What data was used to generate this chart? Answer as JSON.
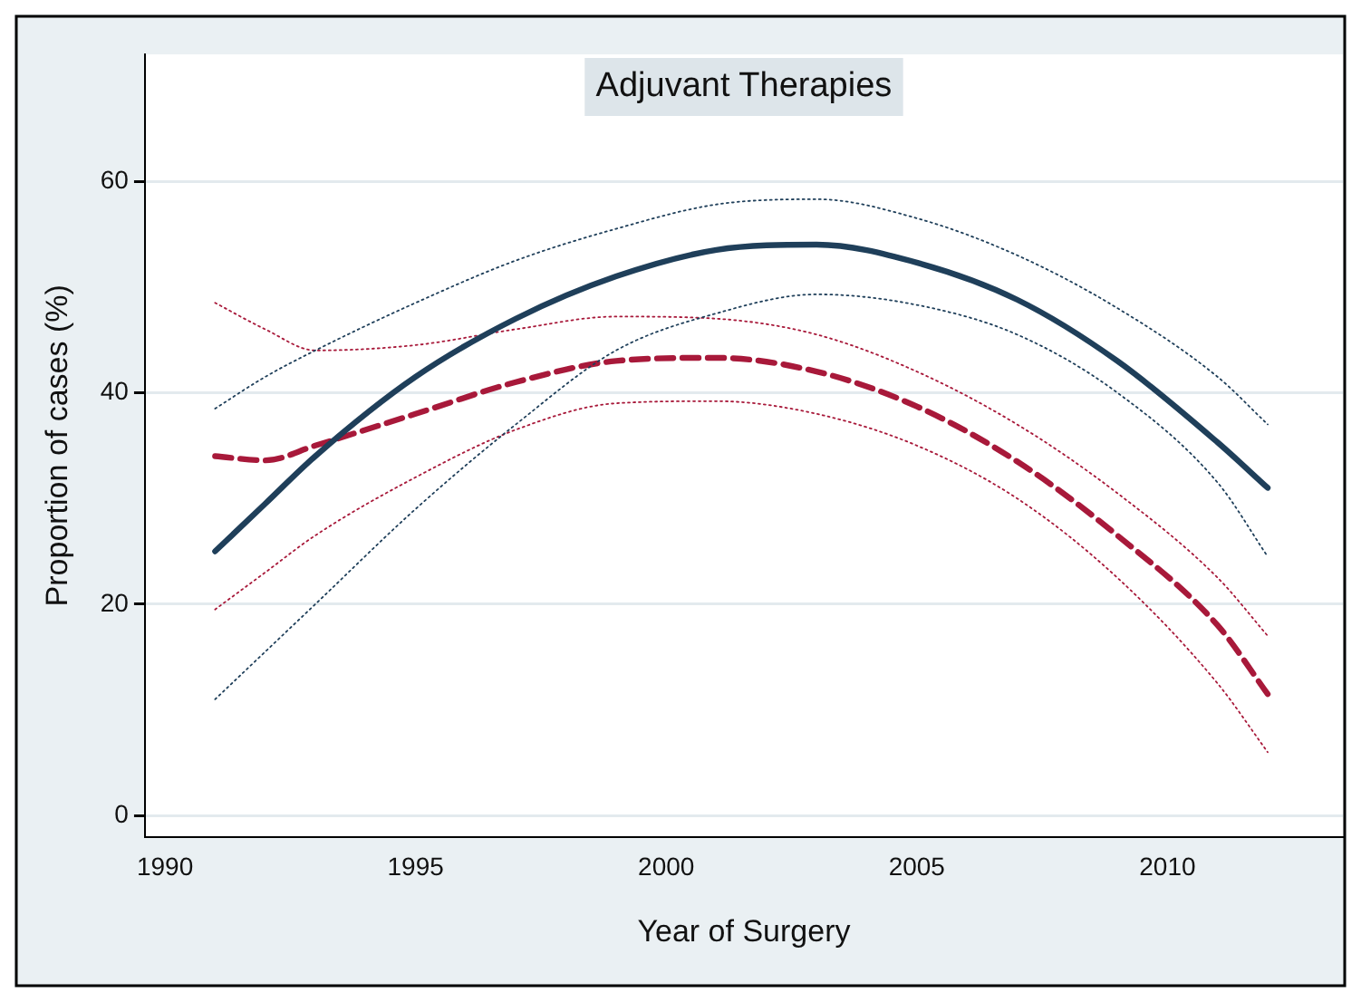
{
  "chart_data": {
    "type": "line",
    "title": "Adjuvant Therapies",
    "xlabel": "Year of Surgery",
    "ylabel": "Proportion of cases (%)",
    "x": [
      1991,
      1992,
      1993,
      1995,
      1997,
      1999,
      2001,
      2003,
      2005,
      2007,
      2009,
      2011,
      2012
    ],
    "series": [
      {
        "color": "#1f3f5a",
        "line_style": "solid",
        "values": [
          25,
          29.5,
          34,
          41.5,
          47,
          51,
          53.5,
          54,
          52.3,
          48.8,
          43,
          35.3,
          31
        ]
      },
      {
        "color": "#1f3f5a",
        "line_style": "dotted",
        "values": [
          11,
          15.5,
          20,
          29,
          37,
          44,
          47.5,
          49.3,
          48.3,
          45.5,
          40,
          31.5,
          24.5
        ]
      },
      {
        "color": "#1f3f5a",
        "line_style": "dotted",
        "values": [
          38.5,
          41.5,
          44,
          48.5,
          52.5,
          55.5,
          57.8,
          58.3,
          56.5,
          53,
          48,
          41.5,
          37
        ]
      },
      {
        "color": "#a8193a",
        "line_style": "dashed",
        "values": [
          34,
          33.6,
          35,
          38,
          41,
          43,
          43.3,
          42,
          38.7,
          33.5,
          26.5,
          18,
          11.5
        ]
      },
      {
        "color": "#a8193a",
        "line_style": "dotted",
        "values": [
          19.5,
          23,
          26.5,
          32,
          36.5,
          39,
          39.2,
          38,
          35,
          30,
          22.5,
          12.5,
          6
        ]
      },
      {
        "color": "#a8193a",
        "line_style": "dotted",
        "values": [
          48.5,
          46,
          44,
          44.5,
          46,
          47.2,
          47,
          45.5,
          42,
          37,
          30.5,
          22.5,
          17
        ]
      }
    ],
    "xlim": [
      1989.6,
      2013.5
    ],
    "ylim": [
      -2,
      72
    ],
    "xticks": [
      1990,
      1995,
      2000,
      2005,
      2010
    ],
    "yticks": [
      0,
      20,
      40,
      60
    ],
    "grid": "y",
    "legend": false,
    "marker": "none"
  }
}
